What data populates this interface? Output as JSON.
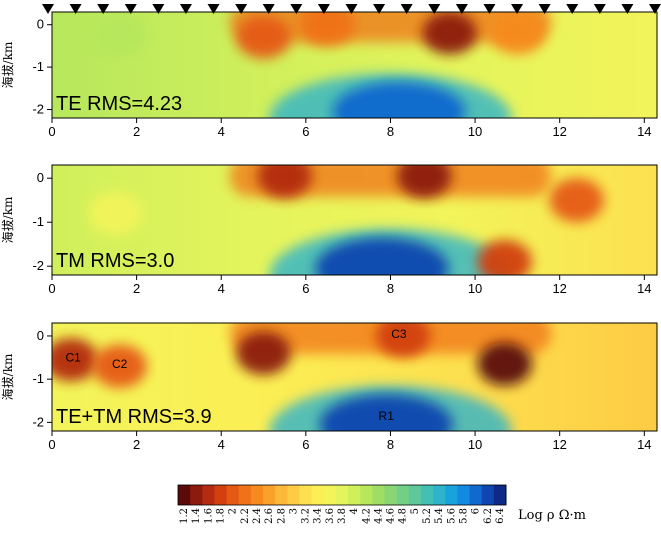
{
  "chart_data": [
    {
      "type": "heatmap",
      "panel_label": "TE RMS=4.23",
      "ylabel": "海拔/km",
      "xlim": [
        0,
        14.3
      ],
      "ylim": [
        -2.2,
        0.3
      ],
      "x_ticks": [
        "0",
        "2",
        "4",
        "6",
        "8",
        "10",
        "12",
        "14"
      ],
      "y_ticks": [
        "0",
        "-1",
        "-2"
      ],
      "stations_shown": true,
      "annotations": [],
      "anomalies": [
        {
          "x": 5.0,
          "y": -0.3,
          "value": 2.0
        },
        {
          "x": 9.4,
          "y": -0.2,
          "value": 1.3
        },
        {
          "x": 6.5,
          "y": 0.0,
          "value": 2.2
        },
        {
          "x": 11.0,
          "y": -0.2,
          "value": 2.4
        },
        {
          "x": 8.2,
          "y": -2.05,
          "value": 6.0
        },
        {
          "x": 1.6,
          "y": -0.25,
          "value": 4.2
        }
      ]
    },
    {
      "type": "heatmap",
      "panel_label": "TM RMS=3.0",
      "ylabel": "海拔/km",
      "xlim": [
        0,
        14.3
      ],
      "ylim": [
        -2.2,
        0.3
      ],
      "x_ticks": [
        "0",
        "2",
        "4",
        "6",
        "8",
        "10",
        "12",
        "14"
      ],
      "y_ticks": [
        "0",
        "-1",
        "-2"
      ],
      "stations_shown": false,
      "annotations": [],
      "anomalies": [
        {
          "x": 5.5,
          "y": 0.05,
          "value": 1.6
        },
        {
          "x": 8.8,
          "y": 0.05,
          "value": 1.4
        },
        {
          "x": 10.7,
          "y": -1.9,
          "value": 1.8
        },
        {
          "x": 12.4,
          "y": -0.5,
          "value": 2.0
        },
        {
          "x": 7.8,
          "y": -2.05,
          "value": 6.2
        },
        {
          "x": 1.5,
          "y": -0.8,
          "value": 3.6
        }
      ]
    },
    {
      "type": "heatmap",
      "panel_label": "TE+TM RMS=3.9",
      "ylabel": "海拔/km",
      "xlim": [
        0,
        14.3
      ],
      "ylim": [
        -2.2,
        0.3
      ],
      "x_ticks": [
        "0",
        "2",
        "4",
        "6",
        "8",
        "10",
        "12",
        "14"
      ],
      "y_ticks": [
        "0",
        "-1",
        "-2"
      ],
      "stations_shown": false,
      "annotations": [
        {
          "text": "C1",
          "x": 0.5,
          "y": -0.5
        },
        {
          "text": "C2",
          "x": 1.6,
          "y": -0.65
        },
        {
          "text": "C3",
          "x": 8.2,
          "y": 0.05
        },
        {
          "text": "R1",
          "x": 7.9,
          "y": -1.85
        }
      ],
      "anomalies": [
        {
          "x": 0.45,
          "y": -0.55,
          "value": 1.6
        },
        {
          "x": 1.6,
          "y": -0.7,
          "value": 2.0
        },
        {
          "x": 5.0,
          "y": -0.4,
          "value": 1.4
        },
        {
          "x": 8.3,
          "y": 0.0,
          "value": 1.8
        },
        {
          "x": 10.7,
          "y": -0.65,
          "value": 1.2
        },
        {
          "x": 7.9,
          "y": -2.05,
          "value": 6.2
        }
      ]
    }
  ],
  "colorbar": {
    "label": "Log ρ Ω·m",
    "ticks": [
      "1.2",
      "1.4",
      "1.6",
      "1.8",
      "2",
      "2.2",
      "2.4",
      "2.6",
      "2.8",
      "3",
      "3.2",
      "3.4",
      "3.6",
      "3.8",
      "4",
      "4.2",
      "4.4",
      "4.6",
      "4.8",
      "5",
      "5.2",
      "5.4",
      "5.6",
      "5.8",
      "6",
      "6.2",
      "6.4"
    ],
    "colors": [
      "#5a0a0a",
      "#8c1a0e",
      "#b32b10",
      "#d2400f",
      "#e55a12",
      "#f07218",
      "#f68a1f",
      "#faa129",
      "#fcb838",
      "#fdcc44",
      "#fde04f",
      "#fbef55",
      "#f2f45a",
      "#e4f45c",
      "#cfef5b",
      "#b6e75c",
      "#9fde64",
      "#8ad672",
      "#73cf86",
      "#5cc89c",
      "#44bfb4",
      "#2eb3cc",
      "#1aa2dd",
      "#128ae0",
      "#1168cf",
      "#0f46b0",
      "#0c2a86"
    ]
  }
}
